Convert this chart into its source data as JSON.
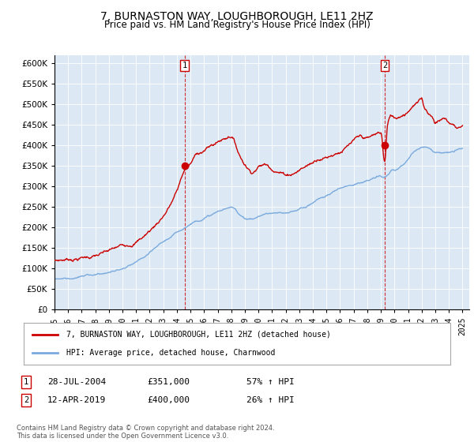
{
  "title": "7, BURNASTON WAY, LOUGHBOROUGH, LE11 2HZ",
  "subtitle": "Price paid vs. HM Land Registry's House Price Index (HPI)",
  "title_fontsize": 10,
  "subtitle_fontsize": 8.5,
  "bg_color": "#dce9f5",
  "legend_entry1": "7, BURNASTON WAY, LOUGHBOROUGH, LE11 2HZ (detached house)",
  "legend_entry2": "HPI: Average price, detached house, Charnwood",
  "annotation1_date": "28-JUL-2004",
  "annotation1_price": "£351,000",
  "annotation1_hpi": "57% ↑ HPI",
  "annotation1_year": 2004.57,
  "annotation1_value": 351000,
  "annotation2_date": "12-APR-2019",
  "annotation2_price": "£400,000",
  "annotation2_hpi": "26% ↑ HPI",
  "annotation2_year": 2019.28,
  "annotation2_value": 400000,
  "footer": "Contains HM Land Registry data © Crown copyright and database right 2024.\nThis data is licensed under the Open Government Licence v3.0.",
  "red_color": "#cc0000",
  "blue_color": "#7aaadd",
  "marker_color": "#cc0000",
  "ylim_max": 620000,
  "xlim_min": 1995.0,
  "xlim_max": 2025.5,
  "red_points": [
    [
      1995.0,
      120000
    ],
    [
      1996.0,
      125000
    ],
    [
      1997.0,
      132000
    ],
    [
      1998.0,
      138000
    ],
    [
      1999.0,
      145000
    ],
    [
      2000.0,
      155000
    ],
    [
      2001.0,
      172000
    ],
    [
      2002.0,
      200000
    ],
    [
      2003.0,
      240000
    ],
    [
      2004.0,
      300000
    ],
    [
      2004.57,
      351000
    ],
    [
      2005.0,
      365000
    ],
    [
      2005.5,
      390000
    ],
    [
      2006.0,
      400000
    ],
    [
      2006.5,
      410000
    ],
    [
      2007.0,
      420000
    ],
    [
      2007.5,
      430000
    ],
    [
      2008.0,
      440000
    ],
    [
      2008.3,
      420000
    ],
    [
      2008.6,
      395000
    ],
    [
      2009.0,
      375000
    ],
    [
      2009.5,
      360000
    ],
    [
      2010.0,
      375000
    ],
    [
      2010.5,
      380000
    ],
    [
      2011.0,
      375000
    ],
    [
      2011.5,
      370000
    ],
    [
      2012.0,
      365000
    ],
    [
      2012.5,
      370000
    ],
    [
      2013.0,
      380000
    ],
    [
      2013.5,
      390000
    ],
    [
      2014.0,
      400000
    ],
    [
      2014.5,
      415000
    ],
    [
      2015.0,
      420000
    ],
    [
      2015.5,
      430000
    ],
    [
      2016.0,
      440000
    ],
    [
      2016.5,
      450000
    ],
    [
      2017.0,
      460000
    ],
    [
      2017.5,
      465000
    ],
    [
      2018.0,
      460000
    ],
    [
      2018.5,
      465000
    ],
    [
      2019.0,
      470000
    ],
    [
      2019.28,
      400000
    ],
    [
      2019.5,
      490000
    ],
    [
      2019.8,
      510000
    ],
    [
      2020.0,
      505000
    ],
    [
      2020.5,
      515000
    ],
    [
      2021.0,
      530000
    ],
    [
      2021.3,
      545000
    ],
    [
      2021.5,
      550000
    ],
    [
      2021.8,
      555000
    ],
    [
      2022.0,
      560000
    ],
    [
      2022.2,
      540000
    ],
    [
      2022.5,
      530000
    ],
    [
      2022.8,
      520000
    ],
    [
      2023.0,
      510000
    ],
    [
      2023.3,
      515000
    ],
    [
      2023.6,
      520000
    ],
    [
      2024.0,
      510000
    ],
    [
      2024.3,
      505000
    ],
    [
      2024.6,
      500000
    ],
    [
      2025.0,
      505000
    ]
  ],
  "blue_points": [
    [
      1995.0,
      75000
    ],
    [
      1996.0,
      78000
    ],
    [
      1997.0,
      82000
    ],
    [
      1998.0,
      87000
    ],
    [
      1999.0,
      93000
    ],
    [
      2000.0,
      100000
    ],
    [
      2001.0,
      112000
    ],
    [
      2002.0,
      130000
    ],
    [
      2003.0,
      155000
    ],
    [
      2004.0,
      175000
    ],
    [
      2004.57,
      190000
    ],
    [
      2005.0,
      200000
    ],
    [
      2005.5,
      210000
    ],
    [
      2006.0,
      218000
    ],
    [
      2006.5,
      225000
    ],
    [
      2007.0,
      232000
    ],
    [
      2007.5,
      238000
    ],
    [
      2008.0,
      240000
    ],
    [
      2008.3,
      235000
    ],
    [
      2008.6,
      225000
    ],
    [
      2009.0,
      218000
    ],
    [
      2009.5,
      215000
    ],
    [
      2010.0,
      222000
    ],
    [
      2010.5,
      228000
    ],
    [
      2011.0,
      230000
    ],
    [
      2011.5,
      228000
    ],
    [
      2012.0,
      225000
    ],
    [
      2012.5,
      228000
    ],
    [
      2013.0,
      235000
    ],
    [
      2013.5,
      242000
    ],
    [
      2014.0,
      252000
    ],
    [
      2014.5,
      263000
    ],
    [
      2015.0,
      270000
    ],
    [
      2015.5,
      278000
    ],
    [
      2016.0,
      288000
    ],
    [
      2016.5,
      295000
    ],
    [
      2017.0,
      302000
    ],
    [
      2017.5,
      308000
    ],
    [
      2018.0,
      310000
    ],
    [
      2018.5,
      315000
    ],
    [
      2019.0,
      318000
    ],
    [
      2019.28,
      317000
    ],
    [
      2019.5,
      322000
    ],
    [
      2019.8,
      330000
    ],
    [
      2020.0,
      328000
    ],
    [
      2020.5,
      338000
    ],
    [
      2021.0,
      355000
    ],
    [
      2021.3,
      368000
    ],
    [
      2021.5,
      375000
    ],
    [
      2021.8,
      382000
    ],
    [
      2022.0,
      388000
    ],
    [
      2022.2,
      390000
    ],
    [
      2022.5,
      388000
    ],
    [
      2022.8,
      382000
    ],
    [
      2023.0,
      378000
    ],
    [
      2023.3,
      378000
    ],
    [
      2023.6,
      380000
    ],
    [
      2024.0,
      378000
    ],
    [
      2024.3,
      380000
    ],
    [
      2024.6,
      383000
    ],
    [
      2025.0,
      388000
    ]
  ]
}
